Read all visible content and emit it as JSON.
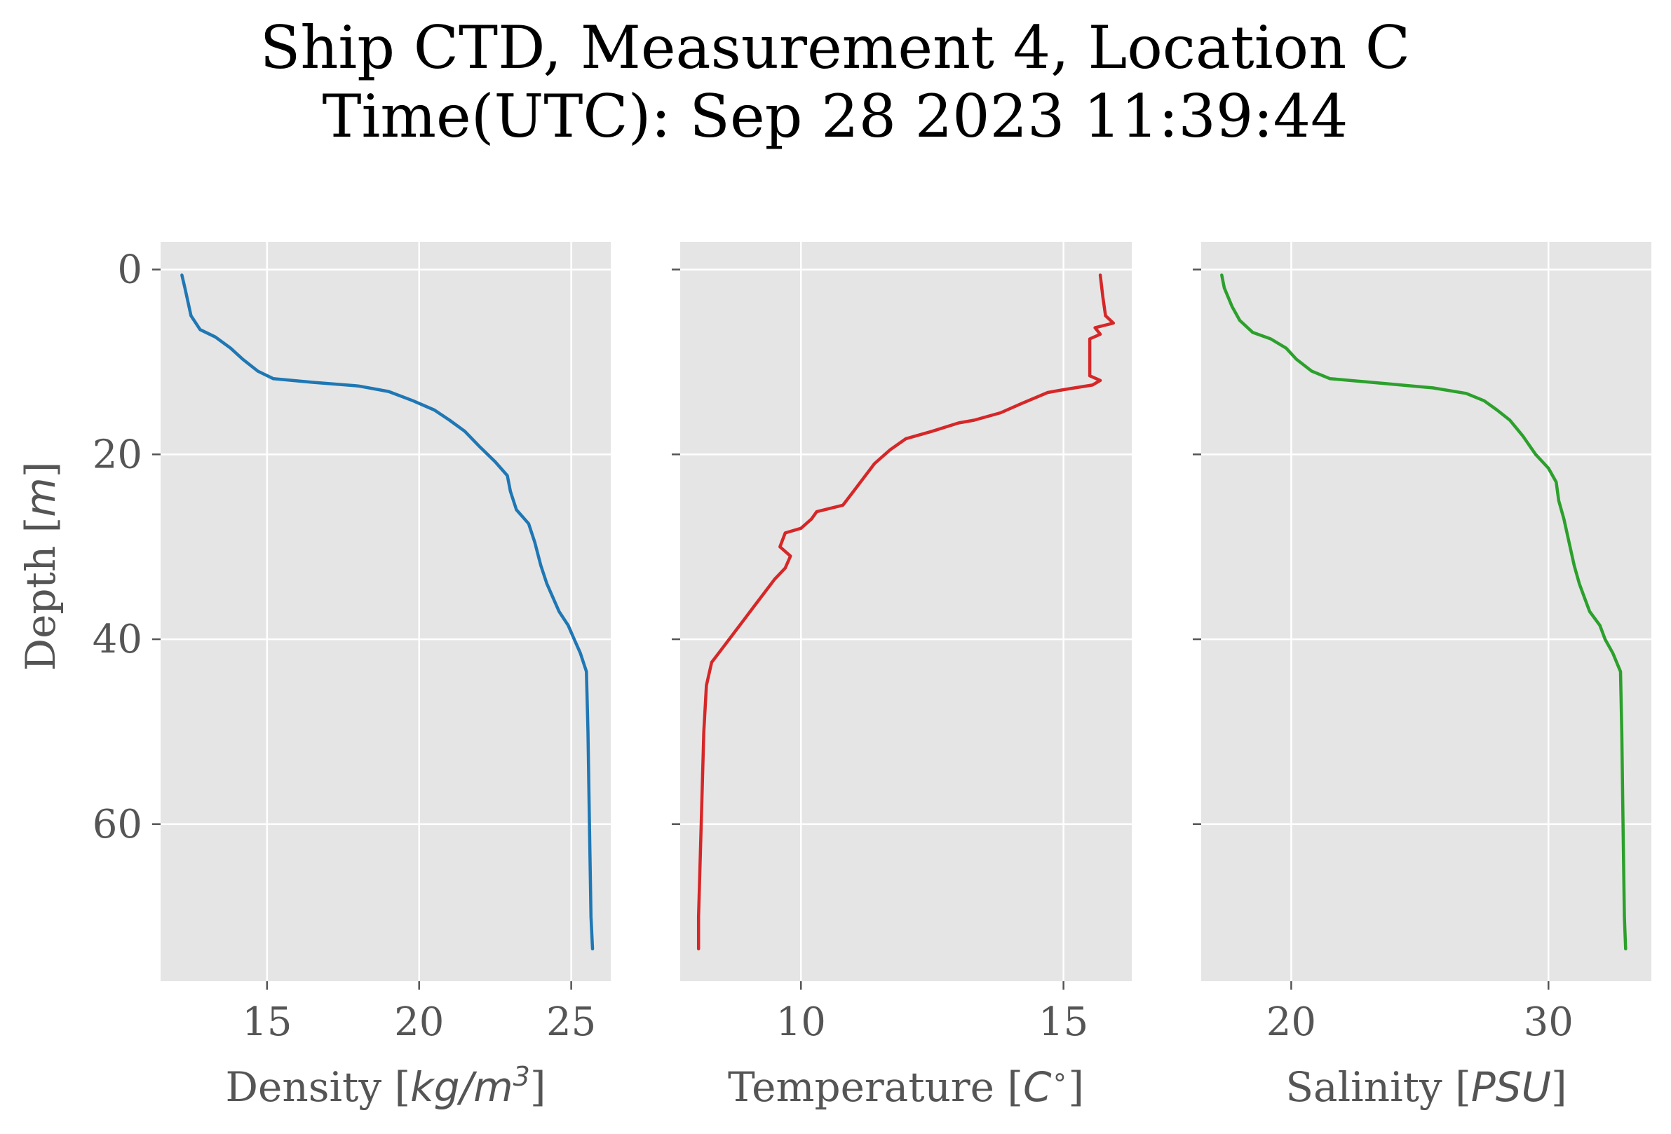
{
  "title": {
    "line1": "Ship CTD, Measurement 4, Location C",
    "line2": "Time(UTC): Sep 28 2023 11:39:44"
  },
  "shared_y_axis": {
    "label_text": "Depth [",
    "label_math": "m",
    "label_end": "]",
    "ticks": [
      0,
      20,
      40,
      60
    ],
    "range": [
      77,
      -3
    ],
    "inverted": true
  },
  "chart_data": [
    {
      "type": "line",
      "name": "density",
      "xlabel_text": "Density [",
      "xlabel_math": "kg/m",
      "xlabel_sup": "3",
      "xlabel_end": "]",
      "xticks": [
        15,
        20,
        25
      ],
      "xlim": [
        11.5,
        26.3
      ],
      "ylabel": "Depth [m]",
      "color": "#1f77b4",
      "grid": true,
      "points": [
        {
          "x": 12.2,
          "y": 0.6
        },
        {
          "x": 12.3,
          "y": 2
        },
        {
          "x": 12.5,
          "y": 5
        },
        {
          "x": 12.8,
          "y": 6.5
        },
        {
          "x": 13.3,
          "y": 7.3
        },
        {
          "x": 13.8,
          "y": 8.5
        },
        {
          "x": 14.2,
          "y": 9.7
        },
        {
          "x": 14.7,
          "y": 11
        },
        {
          "x": 15.2,
          "y": 11.8
        },
        {
          "x": 16.5,
          "y": 12.2
        },
        {
          "x": 18.0,
          "y": 12.6
        },
        {
          "x": 19.0,
          "y": 13.2
        },
        {
          "x": 19.8,
          "y": 14.2
        },
        {
          "x": 20.5,
          "y": 15.2
        },
        {
          "x": 21.0,
          "y": 16.3
        },
        {
          "x": 21.5,
          "y": 17.5
        },
        {
          "x": 22.0,
          "y": 19.2
        },
        {
          "x": 22.5,
          "y": 20.8
        },
        {
          "x": 22.9,
          "y": 22.3
        },
        {
          "x": 23.0,
          "y": 24.0
        },
        {
          "x": 23.2,
          "y": 26.0
        },
        {
          "x": 23.6,
          "y": 27.5
        },
        {
          "x": 23.8,
          "y": 29.5
        },
        {
          "x": 24.0,
          "y": 32.0
        },
        {
          "x": 24.2,
          "y": 34.0
        },
        {
          "x": 24.4,
          "y": 35.5
        },
        {
          "x": 24.6,
          "y": 37.0
        },
        {
          "x": 24.9,
          "y": 38.5
        },
        {
          "x": 25.1,
          "y": 40.0
        },
        {
          "x": 25.3,
          "y": 41.5
        },
        {
          "x": 25.5,
          "y": 43.5
        },
        {
          "x": 25.55,
          "y": 50.0
        },
        {
          "x": 25.6,
          "y": 60.0
        },
        {
          "x": 25.65,
          "y": 70.0
        },
        {
          "x": 25.7,
          "y": 73.5
        }
      ]
    },
    {
      "type": "line",
      "name": "temperature",
      "xlabel_text": "Temperature [",
      "xlabel_math": "C",
      "xlabel_sup": "∘",
      "xlabel_end": "]",
      "xticks": [
        10,
        15
      ],
      "xlim": [
        7.7,
        16.3
      ],
      "ylabel": "Depth [m]",
      "color": "#d62728",
      "grid": true,
      "points": [
        {
          "x": 15.7,
          "y": 0.6
        },
        {
          "x": 15.75,
          "y": 3.0
        },
        {
          "x": 15.8,
          "y": 5.0
        },
        {
          "x": 15.95,
          "y": 5.8
        },
        {
          "x": 15.6,
          "y": 6.3
        },
        {
          "x": 15.7,
          "y": 7.0
        },
        {
          "x": 15.5,
          "y": 7.5
        },
        {
          "x": 15.5,
          "y": 11.5
        },
        {
          "x": 15.7,
          "y": 12.0
        },
        {
          "x": 15.55,
          "y": 12.5
        },
        {
          "x": 15.0,
          "y": 13.0
        },
        {
          "x": 14.7,
          "y": 13.3
        },
        {
          "x": 14.2,
          "y": 14.5
        },
        {
          "x": 13.8,
          "y": 15.5
        },
        {
          "x": 13.3,
          "y": 16.3
        },
        {
          "x": 13.0,
          "y": 16.6
        },
        {
          "x": 12.5,
          "y": 17.5
        },
        {
          "x": 12.0,
          "y": 18.3
        },
        {
          "x": 11.7,
          "y": 19.5
        },
        {
          "x": 11.4,
          "y": 21.0
        },
        {
          "x": 11.2,
          "y": 22.5
        },
        {
          "x": 11.0,
          "y": 24.0
        },
        {
          "x": 10.8,
          "y": 25.5
        },
        {
          "x": 10.3,
          "y": 26.2
        },
        {
          "x": 10.2,
          "y": 27.0
        },
        {
          "x": 10.0,
          "y": 28.0
        },
        {
          "x": 9.7,
          "y": 28.5
        },
        {
          "x": 9.6,
          "y": 30.0
        },
        {
          "x": 9.8,
          "y": 31.0
        },
        {
          "x": 9.7,
          "y": 32.3
        },
        {
          "x": 9.5,
          "y": 33.5
        },
        {
          "x": 9.3,
          "y": 35.0
        },
        {
          "x": 9.1,
          "y": 36.5
        },
        {
          "x": 8.9,
          "y": 38.0
        },
        {
          "x": 8.7,
          "y": 39.5
        },
        {
          "x": 8.5,
          "y": 41.0
        },
        {
          "x": 8.3,
          "y": 42.5
        },
        {
          "x": 8.2,
          "y": 45.0
        },
        {
          "x": 8.15,
          "y": 50.0
        },
        {
          "x": 8.1,
          "y": 60.0
        },
        {
          "x": 8.05,
          "y": 70.0
        },
        {
          "x": 8.05,
          "y": 73.5
        }
      ]
    },
    {
      "type": "line",
      "name": "salinity",
      "xlabel_text": "Salinity [",
      "xlabel_math": "PSU",
      "xlabel_sup": "",
      "xlabel_end": "]",
      "xticks": [
        20,
        30
      ],
      "xlim": [
        16.5,
        34.0
      ],
      "ylabel": "Depth [m]",
      "color": "#2ca02c",
      "grid": true,
      "points": [
        {
          "x": 17.3,
          "y": 0.6
        },
        {
          "x": 17.4,
          "y": 2.0
        },
        {
          "x": 17.7,
          "y": 4.0
        },
        {
          "x": 18.0,
          "y": 5.5
        },
        {
          "x": 18.5,
          "y": 6.8
        },
        {
          "x": 19.2,
          "y": 7.5
        },
        {
          "x": 19.8,
          "y": 8.5
        },
        {
          "x": 20.2,
          "y": 9.7
        },
        {
          "x": 20.8,
          "y": 11.0
        },
        {
          "x": 21.5,
          "y": 11.8
        },
        {
          "x": 23.5,
          "y": 12.3
        },
        {
          "x": 25.5,
          "y": 12.8
        },
        {
          "x": 26.8,
          "y": 13.4
        },
        {
          "x": 27.5,
          "y": 14.2
        },
        {
          "x": 28.0,
          "y": 15.2
        },
        {
          "x": 28.5,
          "y": 16.3
        },
        {
          "x": 29.0,
          "y": 18.0
        },
        {
          "x": 29.5,
          "y": 20.0
        },
        {
          "x": 30.0,
          "y": 21.5
        },
        {
          "x": 30.3,
          "y": 23.0
        },
        {
          "x": 30.4,
          "y": 25.0
        },
        {
          "x": 30.6,
          "y": 27.0
        },
        {
          "x": 30.8,
          "y": 29.5
        },
        {
          "x": 31.0,
          "y": 32.0
        },
        {
          "x": 31.2,
          "y": 34.0
        },
        {
          "x": 31.4,
          "y": 35.5
        },
        {
          "x": 31.6,
          "y": 37.0
        },
        {
          "x": 32.0,
          "y": 38.5
        },
        {
          "x": 32.2,
          "y": 40.0
        },
        {
          "x": 32.5,
          "y": 41.5
        },
        {
          "x": 32.8,
          "y": 43.5
        },
        {
          "x": 32.85,
          "y": 50.0
        },
        {
          "x": 32.9,
          "y": 60.0
        },
        {
          "x": 32.95,
          "y": 70.0
        },
        {
          "x": 33.0,
          "y": 73.5
        }
      ]
    }
  ]
}
